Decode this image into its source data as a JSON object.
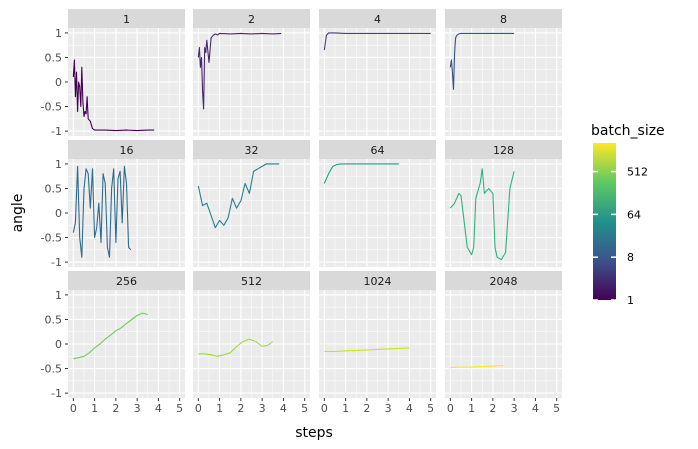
{
  "chart_data": {
    "type": "line",
    "xlabel": "steps",
    "ylabel": "angle",
    "xlim": [
      0,
      5
    ],
    "ylim": [
      -1,
      1
    ],
    "x_ticks": [
      0,
      1,
      2,
      3,
      4,
      5
    ],
    "y_ticks": [
      -1,
      -0.5,
      0,
      0.5,
      1
    ],
    "y_tick_labels": [
      "-1",
      "-0.5",
      "0",
      "0.5",
      "1"
    ],
    "grid": true,
    "legend": {
      "title": "batch_size",
      "placement": "right",
      "labels": [
        "512",
        "64",
        "8",
        "1"
      ],
      "label_values": [
        512,
        64,
        8,
        1
      ],
      "scale": "log2",
      "range": [
        1,
        2048
      ],
      "colors": [
        "#440154",
        "#3b528b",
        "#21918c",
        "#5ec962",
        "#fde725"
      ]
    },
    "facets": [
      {
        "label": "1",
        "batch_size": 1,
        "color": "#440154",
        "x": [
          0,
          0.05,
          0.1,
          0.15,
          0.2,
          0.25,
          0.3,
          0.35,
          0.4,
          0.45,
          0.5,
          0.55,
          0.6,
          0.65,
          0.7,
          0.8,
          0.9,
          1.0,
          1.5,
          2.0,
          2.5,
          3.0,
          3.5,
          3.8
        ],
        "y": [
          0.1,
          0.45,
          -0.3,
          0.2,
          -0.6,
          0.0,
          -0.1,
          -0.5,
          0.3,
          -0.4,
          -0.7,
          -0.6,
          -0.65,
          -0.3,
          -0.75,
          -0.8,
          -0.95,
          -0.98,
          -0.98,
          -0.99,
          -0.98,
          -0.99,
          -0.98,
          -0.98
        ]
      },
      {
        "label": "2",
        "batch_size": 2,
        "color": "#46286b",
        "x": [
          0,
          0.05,
          0.1,
          0.15,
          0.2,
          0.25,
          0.3,
          0.35,
          0.4,
          0.5,
          0.6,
          0.7,
          0.8,
          0.9,
          1.0,
          1.5,
          2.0,
          2.5,
          3.0,
          3.5,
          3.9
        ],
        "y": [
          0.5,
          0.7,
          0.3,
          0.5,
          -0.2,
          -0.55,
          0.7,
          0.6,
          0.85,
          0.4,
          0.9,
          0.95,
          0.98,
          0.96,
          0.99,
          0.98,
          0.99,
          0.98,
          0.99,
          0.98,
          0.99
        ]
      },
      {
        "label": "4",
        "batch_size": 4,
        "color": "#433c7f",
        "x": [
          0,
          0.1,
          0.2,
          0.5,
          1.0,
          1.5,
          2.0,
          2.5,
          3.0,
          3.5,
          4.0,
          4.5,
          5.0
        ],
        "y": [
          0.65,
          0.95,
          1.0,
          1.0,
          0.99,
          0.99,
          0.99,
          0.99,
          0.99,
          0.99,
          0.99,
          0.99,
          0.99
        ]
      },
      {
        "label": "8",
        "batch_size": 8,
        "color": "#3a4f8a",
        "x": [
          0,
          0.05,
          0.1,
          0.15,
          0.2,
          0.25,
          0.3,
          0.4,
          0.5,
          1.0,
          1.5,
          2.0,
          2.5,
          3.0
        ],
        "y": [
          0.3,
          0.45,
          0.2,
          -0.15,
          0.6,
          0.9,
          0.95,
          0.98,
          0.99,
          0.99,
          0.99,
          0.99,
          0.99,
          0.99
        ]
      },
      {
        "label": "16",
        "batch_size": 16,
        "color": "#2e6b8e",
        "x": [
          0,
          0.1,
          0.2,
          0.3,
          0.4,
          0.5,
          0.6,
          0.7,
          0.8,
          0.9,
          1.0,
          1.1,
          1.2,
          1.3,
          1.4,
          1.5,
          1.6,
          1.7,
          1.8,
          1.9,
          2.0,
          2.1,
          2.2,
          2.3,
          2.4,
          2.5,
          2.6,
          2.7
        ],
        "y": [
          -0.4,
          -0.2,
          0.95,
          -0.5,
          -0.9,
          0.5,
          0.9,
          0.8,
          0.1,
          0.9,
          -0.5,
          -0.3,
          0.2,
          -0.6,
          0.8,
          0.6,
          -0.7,
          -0.9,
          0.5,
          0.9,
          -0.6,
          0.7,
          0.85,
          -0.2,
          0.95,
          0.6,
          -0.7,
          -0.75
        ]
      },
      {
        "label": "32",
        "batch_size": 32,
        "color": "#277f8e",
        "x": [
          0,
          0.2,
          0.4,
          0.6,
          0.8,
          1.0,
          1.2,
          1.4,
          1.6,
          1.8,
          2.0,
          2.2,
          2.4,
          2.6,
          2.8,
          3.0,
          3.2,
          3.4,
          3.6,
          3.8
        ],
        "y": [
          0.55,
          0.15,
          0.2,
          -0.05,
          -0.3,
          -0.15,
          -0.25,
          -0.1,
          0.3,
          0.1,
          0.25,
          0.6,
          0.4,
          0.85,
          0.9,
          0.95,
          1.0,
          1.0,
          1.0,
          1.0
        ]
      },
      {
        "label": "64",
        "batch_size": 64,
        "color": "#1fa088",
        "x": [
          0,
          0.2,
          0.4,
          0.6,
          0.8,
          1.0,
          1.5,
          2.0,
          2.5,
          3.0,
          3.5
        ],
        "y": [
          0.6,
          0.8,
          0.95,
          0.99,
          1.0,
          1.0,
          1.0,
          1.0,
          1.0,
          1.0,
          1.0
        ]
      },
      {
        "label": "128",
        "batch_size": 128,
        "color": "#2fb47c",
        "x": [
          0,
          0.2,
          0.4,
          0.5,
          0.6,
          0.8,
          1.0,
          1.1,
          1.2,
          1.4,
          1.5,
          1.6,
          1.8,
          2.0,
          2.1,
          2.2,
          2.4,
          2.6,
          2.8,
          3.0
        ],
        "y": [
          0.1,
          0.2,
          0.4,
          0.35,
          0.0,
          -0.7,
          -0.85,
          -0.7,
          0.3,
          0.6,
          0.9,
          0.4,
          0.5,
          0.4,
          -0.7,
          -0.9,
          -0.95,
          -0.8,
          0.5,
          0.85
        ]
      },
      {
        "label": "256",
        "batch_size": 256,
        "color": "#6ece58",
        "x": [
          0,
          0.25,
          0.5,
          0.75,
          1.0,
          1.25,
          1.5,
          1.75,
          2.0,
          2.25,
          2.5,
          2.75,
          3.0,
          3.25,
          3.5
        ],
        "y": [
          -0.3,
          -0.28,
          -0.25,
          -0.18,
          -0.08,
          0.0,
          0.1,
          0.18,
          0.27,
          0.33,
          0.42,
          0.5,
          0.58,
          0.63,
          0.6
        ]
      },
      {
        "label": "512",
        "batch_size": 512,
        "color": "#a0da39",
        "x": [
          0,
          0.3,
          0.6,
          0.9,
          1.2,
          1.5,
          1.8,
          2.1,
          2.4,
          2.7,
          3.0,
          3.3,
          3.5
        ],
        "y": [
          -0.2,
          -0.2,
          -0.22,
          -0.25,
          -0.22,
          -0.18,
          -0.05,
          0.05,
          0.1,
          0.05,
          -0.05,
          -0.02,
          0.05
        ]
      },
      {
        "label": "1024",
        "batch_size": 1024,
        "color": "#d0e11c",
        "x": [
          0,
          0.5,
          1.0,
          1.5,
          2.0,
          2.5,
          3.0,
          3.5,
          4.0
        ],
        "y": [
          -0.15,
          -0.15,
          -0.14,
          -0.13,
          -0.12,
          -0.11,
          -0.1,
          -0.09,
          -0.08
        ]
      },
      {
        "label": "2048",
        "batch_size": 2048,
        "color": "#fde725",
        "x": [
          0,
          0.5,
          1.0,
          1.5,
          2.0,
          2.5
        ],
        "y": [
          -0.48,
          -0.47,
          -0.47,
          -0.46,
          -0.45,
          -0.44
        ]
      }
    ]
  }
}
